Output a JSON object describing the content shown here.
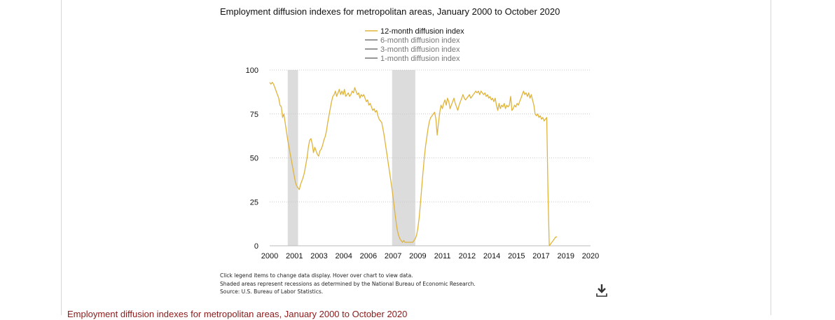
{
  "chart_data": {
    "type": "line",
    "title": "Employment diffusion indexes for metropolitan areas, January 2000 to October 2020",
    "xlabel": "",
    "ylabel": "",
    "x_range": [
      "2000-01",
      "2020-10"
    ],
    "ylim": [
      0,
      100
    ],
    "y_ticks": [
      0,
      25,
      50,
      75,
      100
    ],
    "x_tick_labels": [
      "2000",
      "2001",
      "2003",
      "2004",
      "2006",
      "2007",
      "2009",
      "2011",
      "2012",
      "2014",
      "2015",
      "2017",
      "2019",
      "2020"
    ],
    "grid": "horizontal dotted",
    "legend_position": "top-center",
    "series": [
      {
        "name": "12-month diffusion index",
        "color": "#e0b43a",
        "active": true,
        "points": [
          [
            "2000-01",
            93
          ],
          [
            "2000-02",
            92
          ],
          [
            "2000-03",
            93
          ],
          [
            "2000-04",
            92
          ],
          [
            "2000-05",
            90
          ],
          [
            "2000-06",
            88
          ],
          [
            "2000-07",
            86
          ],
          [
            "2000-08",
            84
          ],
          [
            "2000-09",
            80
          ],
          [
            "2000-10",
            79
          ],
          [
            "2000-11",
            73
          ],
          [
            "2000-12",
            75
          ],
          [
            "2001-01",
            70
          ],
          [
            "2001-02",
            65
          ],
          [
            "2001-03",
            60
          ],
          [
            "2001-04",
            56
          ],
          [
            "2001-05",
            52
          ],
          [
            "2001-06",
            48
          ],
          [
            "2001-07",
            44
          ],
          [
            "2001-08",
            40
          ],
          [
            "2001-09",
            36
          ],
          [
            "2001-10",
            34
          ],
          [
            "2001-11",
            33
          ],
          [
            "2001-12",
            32
          ],
          [
            "2002-01",
            35
          ],
          [
            "2002-02",
            37
          ],
          [
            "2002-03",
            39
          ],
          [
            "2002-04",
            42
          ],
          [
            "2002-05",
            46
          ],
          [
            "2002-06",
            50
          ],
          [
            "2002-07",
            56
          ],
          [
            "2002-08",
            60
          ],
          [
            "2002-09",
            61
          ],
          [
            "2002-10",
            58
          ],
          [
            "2002-11",
            53
          ],
          [
            "2002-12",
            56
          ],
          [
            "2003-01",
            54
          ],
          [
            "2003-02",
            52
          ],
          [
            "2003-03",
            51
          ],
          [
            "2003-04",
            54
          ],
          [
            "2003-05",
            55
          ],
          [
            "2003-06",
            57
          ],
          [
            "2003-07",
            60
          ],
          [
            "2003-08",
            62
          ],
          [
            "2003-09",
            65
          ],
          [
            "2003-10",
            70
          ],
          [
            "2003-11",
            74
          ],
          [
            "2003-12",
            78
          ],
          [
            "2004-01",
            82
          ],
          [
            "2004-02",
            85
          ],
          [
            "2004-03",
            86
          ],
          [
            "2004-04",
            88
          ],
          [
            "2004-05",
            85
          ],
          [
            "2004-06",
            87
          ],
          [
            "2004-07",
            89
          ],
          [
            "2004-08",
            86
          ],
          [
            "2004-09",
            88
          ],
          [
            "2004-10",
            86
          ],
          [
            "2004-11",
            89
          ],
          [
            "2004-12",
            85
          ],
          [
            "2005-01",
            86
          ],
          [
            "2005-02",
            87
          ],
          [
            "2005-03",
            85
          ],
          [
            "2005-04",
            86
          ],
          [
            "2005-05",
            88
          ],
          [
            "2005-06",
            87
          ],
          [
            "2005-07",
            90
          ],
          [
            "2005-08",
            88
          ],
          [
            "2005-09",
            86
          ],
          [
            "2005-10",
            87
          ],
          [
            "2005-11",
            84
          ],
          [
            "2005-12",
            86
          ],
          [
            "2006-01",
            85
          ],
          [
            "2006-02",
            86
          ],
          [
            "2006-03",
            84
          ],
          [
            "2006-04",
            82
          ],
          [
            "2006-05",
            83
          ],
          [
            "2006-06",
            80
          ],
          [
            "2006-07",
            81
          ],
          [
            "2006-08",
            79
          ],
          [
            "2006-09",
            77
          ],
          [
            "2006-10",
            78
          ],
          [
            "2006-11",
            76
          ],
          [
            "2006-12",
            77
          ],
          [
            "2007-01",
            74
          ],
          [
            "2007-02",
            72
          ],
          [
            "2007-03",
            71
          ],
          [
            "2007-04",
            70
          ],
          [
            "2007-05",
            66
          ],
          [
            "2007-06",
            62
          ],
          [
            "2007-07",
            57
          ],
          [
            "2007-08",
            52
          ],
          [
            "2007-09",
            47
          ],
          [
            "2007-10",
            42
          ],
          [
            "2007-11",
            37
          ],
          [
            "2007-12",
            32
          ],
          [
            "2008-01",
            26
          ],
          [
            "2008-02",
            20
          ],
          [
            "2008-03",
            14
          ],
          [
            "2008-04",
            9
          ],
          [
            "2008-05",
            6
          ],
          [
            "2008-06",
            4
          ],
          [
            "2008-07",
            3
          ],
          [
            "2008-08",
            2
          ],
          [
            "2008-09",
            3
          ],
          [
            "2008-10",
            2
          ],
          [
            "2008-11",
            2
          ],
          [
            "2008-12",
            2
          ],
          [
            "2009-01",
            2
          ],
          [
            "2009-02",
            2
          ],
          [
            "2009-03",
            2
          ],
          [
            "2009-04",
            2
          ],
          [
            "2009-05",
            3
          ],
          [
            "2009-06",
            4
          ],
          [
            "2009-07",
            6
          ],
          [
            "2009-08",
            10
          ],
          [
            "2009-09",
            16
          ],
          [
            "2009-10",
            24
          ],
          [
            "2009-11",
            33
          ],
          [
            "2009-12",
            42
          ],
          [
            "2010-01",
            50
          ],
          [
            "2010-02",
            57
          ],
          [
            "2010-03",
            62
          ],
          [
            "2010-04",
            67
          ],
          [
            "2010-05",
            71
          ],
          [
            "2010-06",
            73
          ],
          [
            "2010-07",
            74
          ],
          [
            "2010-08",
            75
          ],
          [
            "2010-09",
            76
          ],
          [
            "2010-10",
            72
          ],
          [
            "2010-11",
            63
          ],
          [
            "2010-12",
            70
          ],
          [
            "2011-01",
            76
          ],
          [
            "2011-02",
            80
          ],
          [
            "2011-03",
            78
          ],
          [
            "2011-04",
            81
          ],
          [
            "2011-05",
            83
          ],
          [
            "2011-06",
            80
          ],
          [
            "2011-07",
            84
          ],
          [
            "2011-08",
            82
          ],
          [
            "2011-09",
            78
          ],
          [
            "2011-10",
            80
          ],
          [
            "2011-11",
            82
          ],
          [
            "2011-12",
            84
          ],
          [
            "2012-01",
            81
          ],
          [
            "2012-02",
            79
          ],
          [
            "2012-03",
            77
          ],
          [
            "2012-04",
            80
          ],
          [
            "2012-05",
            82
          ],
          [
            "2012-06",
            84
          ],
          [
            "2012-07",
            86
          ],
          [
            "2012-08",
            84
          ],
          [
            "2012-09",
            83
          ],
          [
            "2012-10",
            84
          ],
          [
            "2012-11",
            85
          ],
          [
            "2012-12",
            86
          ],
          [
            "2013-01",
            84
          ],
          [
            "2013-02",
            85
          ],
          [
            "2013-03",
            86
          ],
          [
            "2013-04",
            87
          ],
          [
            "2013-05",
            88
          ],
          [
            "2013-06",
            87
          ],
          [
            "2013-07",
            88
          ],
          [
            "2013-08",
            86
          ],
          [
            "2013-09",
            88
          ],
          [
            "2013-10",
            87
          ],
          [
            "2013-11",
            86
          ],
          [
            "2013-12",
            87
          ],
          [
            "2014-01",
            85
          ],
          [
            "2014-02",
            86
          ],
          [
            "2014-03",
            84
          ],
          [
            "2014-04",
            85
          ],
          [
            "2014-05",
            83
          ],
          [
            "2014-06",
            84
          ],
          [
            "2014-07",
            82
          ],
          [
            "2014-08",
            84
          ],
          [
            "2014-09",
            80
          ],
          [
            "2014-10",
            77
          ],
          [
            "2014-11",
            81
          ],
          [
            "2014-12",
            78
          ],
          [
            "2015-01",
            80
          ],
          [
            "2015-02",
            79
          ],
          [
            "2015-03",
            81
          ],
          [
            "2015-04",
            78
          ],
          [
            "2015-05",
            80
          ],
          [
            "2015-06",
            79
          ],
          [
            "2015-07",
            80
          ],
          [
            "2015-08",
            85
          ],
          [
            "2015-09",
            77
          ],
          [
            "2015-10",
            78
          ],
          [
            "2015-11",
            80
          ],
          [
            "2015-12",
            79
          ],
          [
            "2016-01",
            81
          ],
          [
            "2016-02",
            80
          ],
          [
            "2016-03",
            82
          ],
          [
            "2016-04",
            84
          ],
          [
            "2016-05",
            86
          ],
          [
            "2016-06",
            88
          ],
          [
            "2016-07",
            86
          ],
          [
            "2016-08",
            87
          ],
          [
            "2016-09",
            85
          ],
          [
            "2016-10",
            87
          ],
          [
            "2016-11",
            84
          ],
          [
            "2016-12",
            86
          ],
          [
            "2017-01",
            83
          ],
          [
            "2017-02",
            80
          ],
          [
            "2017-03",
            75
          ],
          [
            "2017-04",
            74
          ],
          [
            "2017-05",
            75
          ],
          [
            "2017-06",
            73
          ],
          [
            "2017-07",
            74
          ],
          [
            "2017-08",
            72
          ],
          [
            "2017-09",
            73
          ],
          [
            "2017-10",
            71
          ],
          [
            "2017-11",
            72
          ],
          [
            "2017-12",
            73
          ],
          [
            "2018-01",
            30
          ],
          [
            "2018-02",
            0
          ],
          [
            "2018-03",
            1
          ],
          [
            "2018-04",
            2
          ],
          [
            "2018-05",
            3
          ],
          [
            "2018-06",
            4
          ],
          [
            "2018-07",
            5
          ],
          [
            "2018-08",
            5
          ]
        ]
      },
      {
        "name": "6-month diffusion index",
        "color": "#777777",
        "active": false,
        "points": []
      },
      {
        "name": "3-month diffusion index",
        "color": "#777777",
        "active": false,
        "points": []
      },
      {
        "name": "1-month diffusion index",
        "color": "#777777",
        "active": false,
        "points": []
      }
    ],
    "recessions": [
      {
        "start": "2001-03",
        "end": "2001-11"
      },
      {
        "start": "2007-12",
        "end": "2009-06"
      }
    ]
  },
  "notes": {
    "line1": "Click legend items to change data display. Hover over chart to view data.",
    "line2": "Shaded areas represent recessions as determined by the National Bureau of Economic Research.",
    "line3": "Source: U.S. Bureau of Labor Statistics."
  },
  "download_icon": "download-icon",
  "footer_title": "Employment diffusion indexes for metropolitan areas, January 2000 to October 2020"
}
